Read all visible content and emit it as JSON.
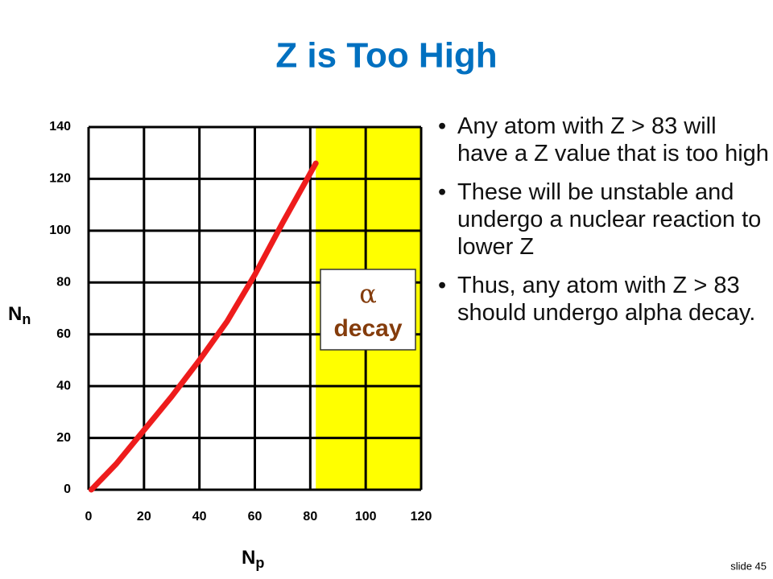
{
  "chart_data": {
    "type": "line",
    "title": "Z is Too High",
    "xlabel": "N",
    "xlabel_sub": "p",
    "ylabel": "N",
    "ylabel_sub": "n",
    "xlim": [
      0,
      120
    ],
    "xticks": [
      0,
      20,
      40,
      60,
      80,
      100,
      120
    ],
    "ylim": [
      0,
      140
    ],
    "yticks": [
      0,
      20,
      40,
      60,
      80,
      100,
      120,
      140
    ],
    "grid": true,
    "series": [
      {
        "color": "#ee1c1c",
        "x": [
          1,
          10,
          20,
          30,
          40,
          50,
          60,
          70,
          82
        ],
        "values": [
          0,
          10,
          23,
          36,
          50,
          65,
          83,
          103,
          126
        ]
      }
    ],
    "region": {
      "xrange": [
        82,
        120
      ],
      "color": "#ffff00"
    },
    "annotation": {
      "symbol": "α",
      "text": "decay",
      "color": "#843c0c"
    }
  },
  "bullets": [
    "Any atom with Z > 83 will have a Z value that is too high",
    "These will be unstable and undergo a nuclear reaction to lower Z",
    "Thus, any atom with Z > 83 should undergo alpha decay."
  ],
  "footer": "slide 45"
}
